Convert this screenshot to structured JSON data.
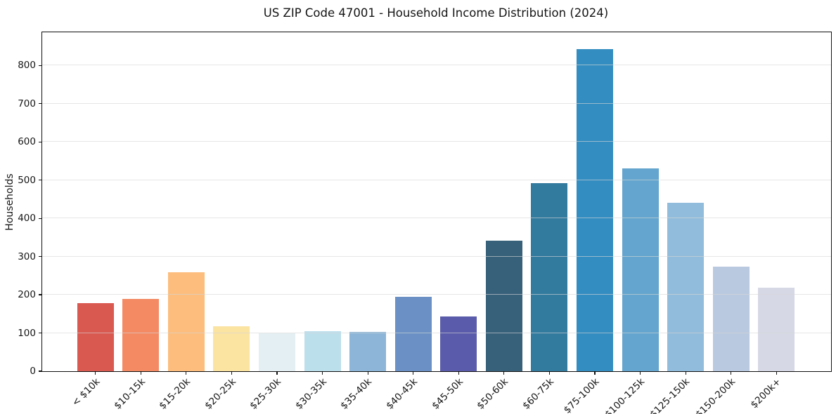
{
  "figure": {
    "title": "US ZIP Code 47001 - Household Income Distribution (2024)",
    "ylabel": "Households"
  },
  "chart_data": {
    "type": "bar",
    "title": "US ZIP Code 47001 - Household Income Distribution (2024)",
    "xlabel": "",
    "ylabel": "Households",
    "categories": [
      "< $10k",
      "$10-15k",
      "$15-20k",
      "$20-25k",
      "$25-30k",
      "$30-35k",
      "$35-40k",
      "$40-45k",
      "$45-50k",
      "$50-60k",
      "$60-75k",
      "$75-100k",
      "$100-125k",
      "$125-150k",
      "$150-200k",
      "$200k+"
    ],
    "values": [
      178,
      190,
      259,
      118,
      99,
      104,
      102,
      194,
      144,
      341,
      493,
      843,
      531,
      441,
      274,
      219
    ],
    "bar_colors": [
      "#d95850",
      "#f48a64",
      "#fcbd7d",
      "#fbe3a2",
      "#e3eff2",
      "#bcdfec",
      "#8cb5d8",
      "#6a90c5",
      "#5a5baa",
      "#37607a",
      "#327a9e",
      "#338dc1",
      "#63a5ce",
      "#92bcdb",
      "#b9c9e0",
      "#d6d8e5"
    ],
    "ylim": [
      0,
      887
    ],
    "yticks": [
      0,
      100,
      200,
      300,
      400,
      500,
      600,
      700,
      800
    ],
    "grid": "horizontal-gridlines-on",
    "legend": "none",
    "x_tick_rotation_deg": 45
  },
  "style_colors": {
    "background": "#ffffff",
    "spine": "#101010",
    "grid": "#e8e8e8",
    "text": "#151515"
  }
}
